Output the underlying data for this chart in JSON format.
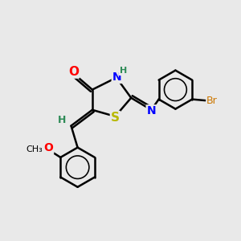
{
  "bg_color": "#e9e9e9",
  "atom_colors": {
    "C": "#000000",
    "N": "#0000ff",
    "O": "#ff0000",
    "S": "#b8b800",
    "Br": "#cc7700",
    "H_label": "#2e8b57"
  },
  "bond_color": "#000000",
  "bond_width": 1.8,
  "figsize": [
    3.0,
    3.0
  ],
  "dpi": 100,
  "xlim": [
    0,
    10
  ],
  "ylim": [
    0,
    10
  ]
}
